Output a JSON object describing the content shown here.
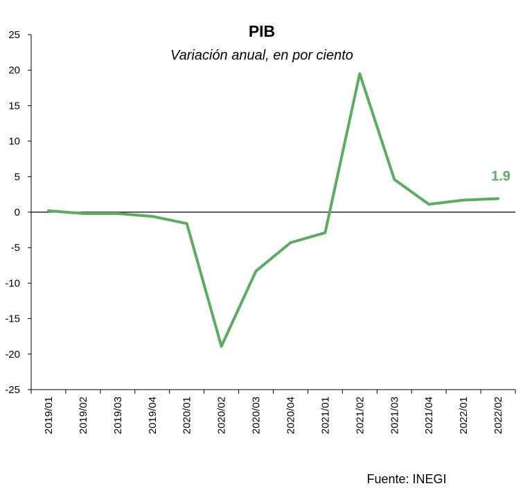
{
  "chart_data": {
    "type": "line",
    "title": "PIB",
    "subtitle": "Variación anual, en por ciento",
    "source": "Fuente: INEGI",
    "categories": [
      "2019/01",
      "2019/02",
      "2019/03",
      "2019/04",
      "2020/01",
      "2020/02",
      "2020/03",
      "2020/04",
      "2021/01",
      "2021/02",
      "2021/03",
      "2021/04",
      "2022/01",
      "2022/02"
    ],
    "series": [
      {
        "values": [
          0.2,
          -0.2,
          -0.2,
          -0.6,
          -1.6,
          -18.9,
          -8.3,
          -4.3,
          -2.9,
          19.5,
          4.6,
          1.1,
          1.7,
          1.9
        ],
        "color": "#5aad5e"
      }
    ],
    "annotations": [
      {
        "category": "2022/02",
        "text": "1.9"
      }
    ],
    "ylim": [
      -25,
      25
    ],
    "yticks": [
      25,
      20,
      15,
      10,
      5,
      0,
      -5,
      -10,
      -15,
      -20,
      -25
    ],
    "grid": false,
    "zero_line": true,
    "legend": "none"
  }
}
